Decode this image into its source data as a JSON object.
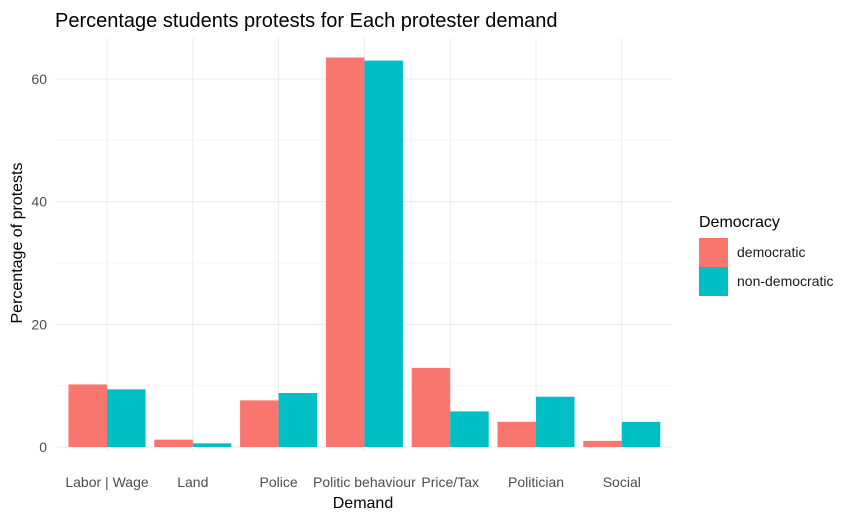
{
  "chart_data": {
    "type": "bar",
    "title": "Percentage students protests for Each protester demand",
    "xlabel": "Demand",
    "ylabel": "Percentage of protests",
    "categories": [
      "Labor | Wage",
      "Land",
      "Police",
      "Politic behaviour",
      "Price/Tax",
      "Politician",
      "Social"
    ],
    "series": [
      {
        "name": "democratic",
        "color": "#F8766D",
        "values": [
          10.2,
          1.2,
          7.6,
          63.5,
          12.9,
          4.1,
          1.0
        ]
      },
      {
        "name": "non-democratic",
        "color": "#00BFC4",
        "values": [
          9.4,
          0.6,
          8.8,
          63.0,
          5.8,
          8.2,
          4.1
        ]
      }
    ],
    "ylim": [
      0,
      66
    ],
    "yticks": [
      0,
      20,
      40,
      60
    ],
    "grid": true,
    "legend": {
      "title": "Democracy",
      "position": "right"
    }
  }
}
